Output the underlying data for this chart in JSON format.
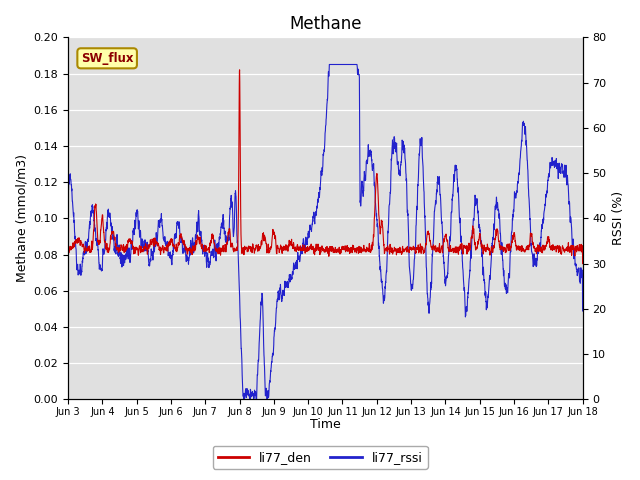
{
  "title": "Methane",
  "ylabel_left": "Methane (mmol/m3)",
  "ylabel_right": "RSSI (%)",
  "xlabel": "Time",
  "ylim_left": [
    0.0,
    0.2
  ],
  "ylim_right": [
    0,
    80
  ],
  "yticks_left": [
    0.0,
    0.02,
    0.04,
    0.06,
    0.08,
    0.1,
    0.12,
    0.14,
    0.16,
    0.18,
    0.2
  ],
  "yticks_right": [
    0,
    10,
    20,
    30,
    40,
    50,
    60,
    70,
    80
  ],
  "bg_color": "#e0e0e0",
  "fig_color": "#ffffff",
  "legend_label1": "li77_den",
  "legend_label2": "li77_rssi",
  "legend_color1": "#cc0000",
  "legend_color2": "#2222cc",
  "annotation_text": "SW_flux",
  "annotation_bg": "#ffffaa",
  "annotation_border": "#aa8800"
}
